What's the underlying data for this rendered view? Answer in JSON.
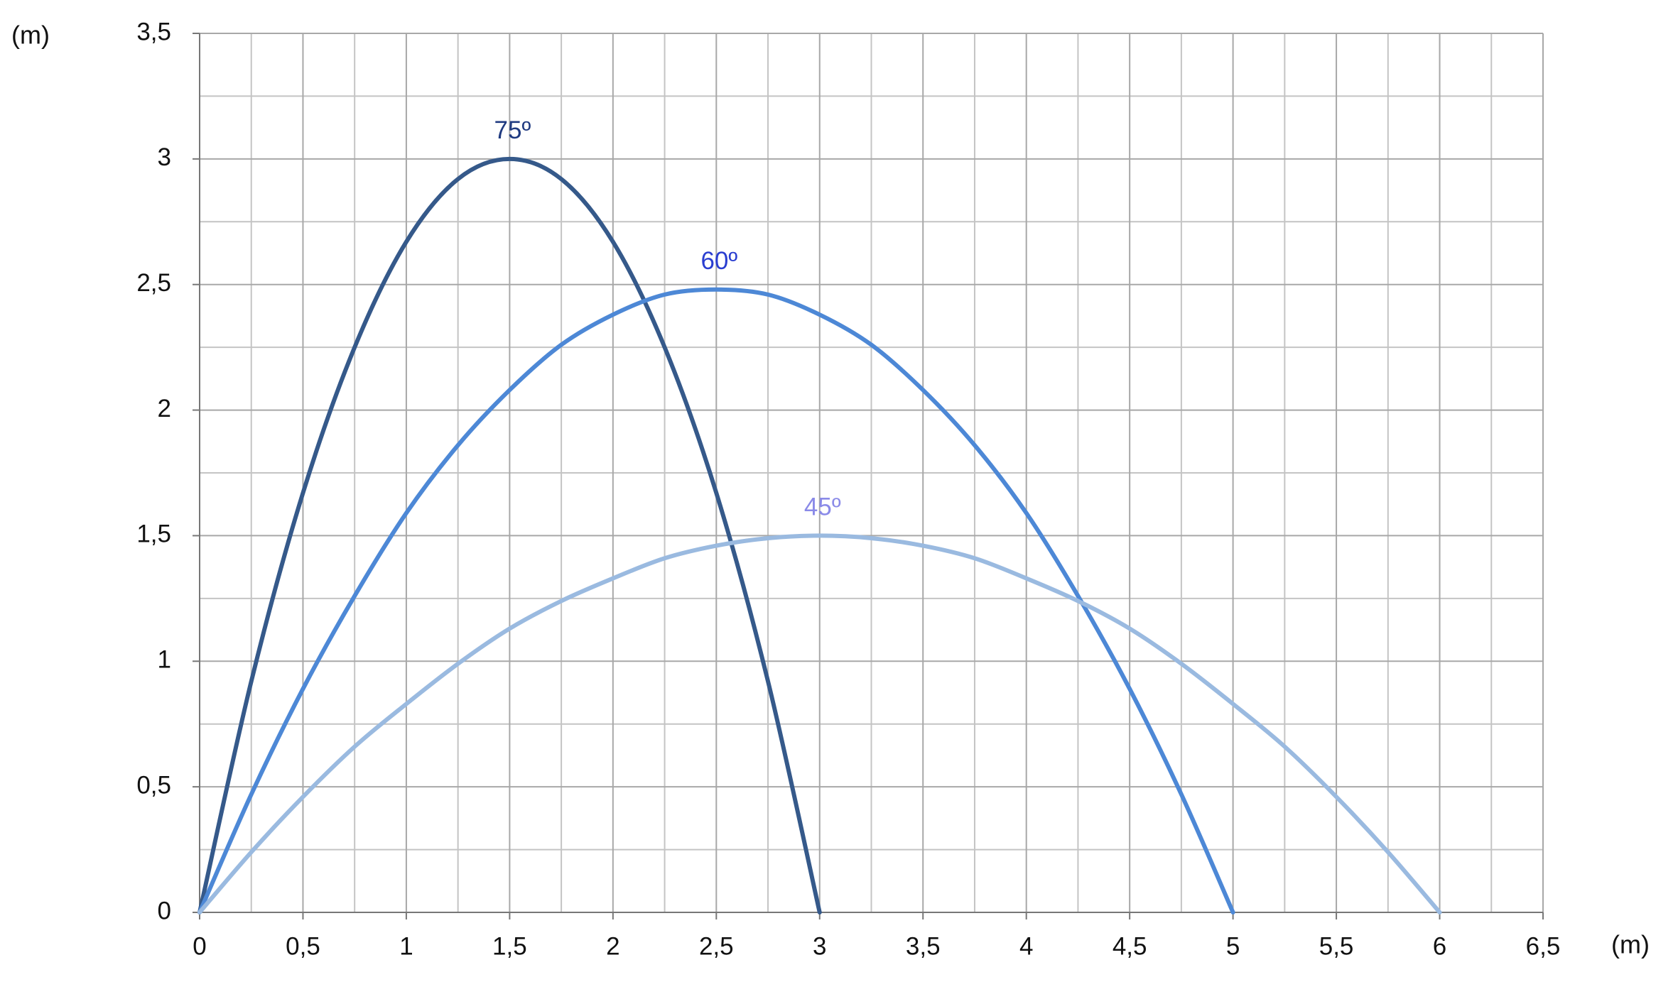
{
  "chart_data": {
    "type": "line",
    "xlabel": "(m)",
    "ylabel": "(m)",
    "xlim": [
      0,
      6.5
    ],
    "ylim": [
      0,
      3.5
    ],
    "xticks": [
      0,
      {
        "value": 0.5,
        "label": "0,5"
      },
      1,
      {
        "value": 1.5,
        "label": "1,5"
      },
      2,
      {
        "value": 2.5,
        "label": "2,5"
      },
      3,
      {
        "value": 3.5,
        "label": "3,5"
      },
      4,
      {
        "value": 4.5,
        "label": "4,5"
      },
      5,
      {
        "value": 5.5,
        "label": "5,5"
      },
      6,
      {
        "value": 6.5,
        "label": "6,5"
      }
    ],
    "yticks": [
      0,
      {
        "value": 0.5,
        "label": "0,5"
      },
      1,
      {
        "value": 1.5,
        "label": "1,5"
      },
      2,
      {
        "value": 2.5,
        "label": "2,5"
      },
      3,
      {
        "value": 3.5,
        "label": "3,5"
      }
    ],
    "grid": true,
    "minor_grid": true,
    "series": [
      {
        "name": "75º",
        "color": "#35598a",
        "label_color": "#1f3a80",
        "x": [
          0,
          0.25,
          0.5,
          0.75,
          1,
          1.25,
          1.5,
          1.75,
          2,
          2.25,
          2.5,
          2.75,
          3
        ],
        "values": [
          0,
          0.92,
          1.67,
          2.25,
          2.67,
          2.92,
          3,
          2.92,
          2.67,
          2.25,
          1.67,
          0.92,
          0
        ]
      },
      {
        "name": "60º",
        "color": "#4d88d6",
        "label_color": "#2a3ed0",
        "x": [
          0,
          0.25,
          0.5,
          0.75,
          1,
          1.25,
          1.5,
          1.75,
          2,
          2.25,
          2.5,
          2.75,
          3,
          3.25,
          3.5,
          3.75,
          4,
          4.25,
          4.5,
          4.75,
          5
        ],
        "values": [
          0,
          0.47,
          0.89,
          1.26,
          1.59,
          1.86,
          2.08,
          2.26,
          2.38,
          2.46,
          2.48,
          2.46,
          2.38,
          2.26,
          2.08,
          1.86,
          1.59,
          1.26,
          0.89,
          0.47,
          0
        ]
      },
      {
        "name": "45º",
        "color": "#9abae0",
        "label_color": "#8a8ae8",
        "x": [
          0,
          0.25,
          0.5,
          0.75,
          1,
          1.25,
          1.5,
          1.75,
          2,
          2.25,
          2.5,
          2.75,
          3,
          3.25,
          3.5,
          3.75,
          4,
          4.25,
          4.5,
          4.75,
          5,
          5.25,
          5.5,
          5.75,
          6
        ],
        "values": [
          0,
          0.24,
          0.46,
          0.66,
          0.83,
          0.99,
          1.13,
          1.24,
          1.33,
          1.41,
          1.46,
          1.49,
          1.5,
          1.49,
          1.46,
          1.41,
          1.33,
          1.24,
          1.13,
          0.99,
          0.83,
          0.66,
          0.46,
          0.24,
          0
        ]
      }
    ]
  }
}
